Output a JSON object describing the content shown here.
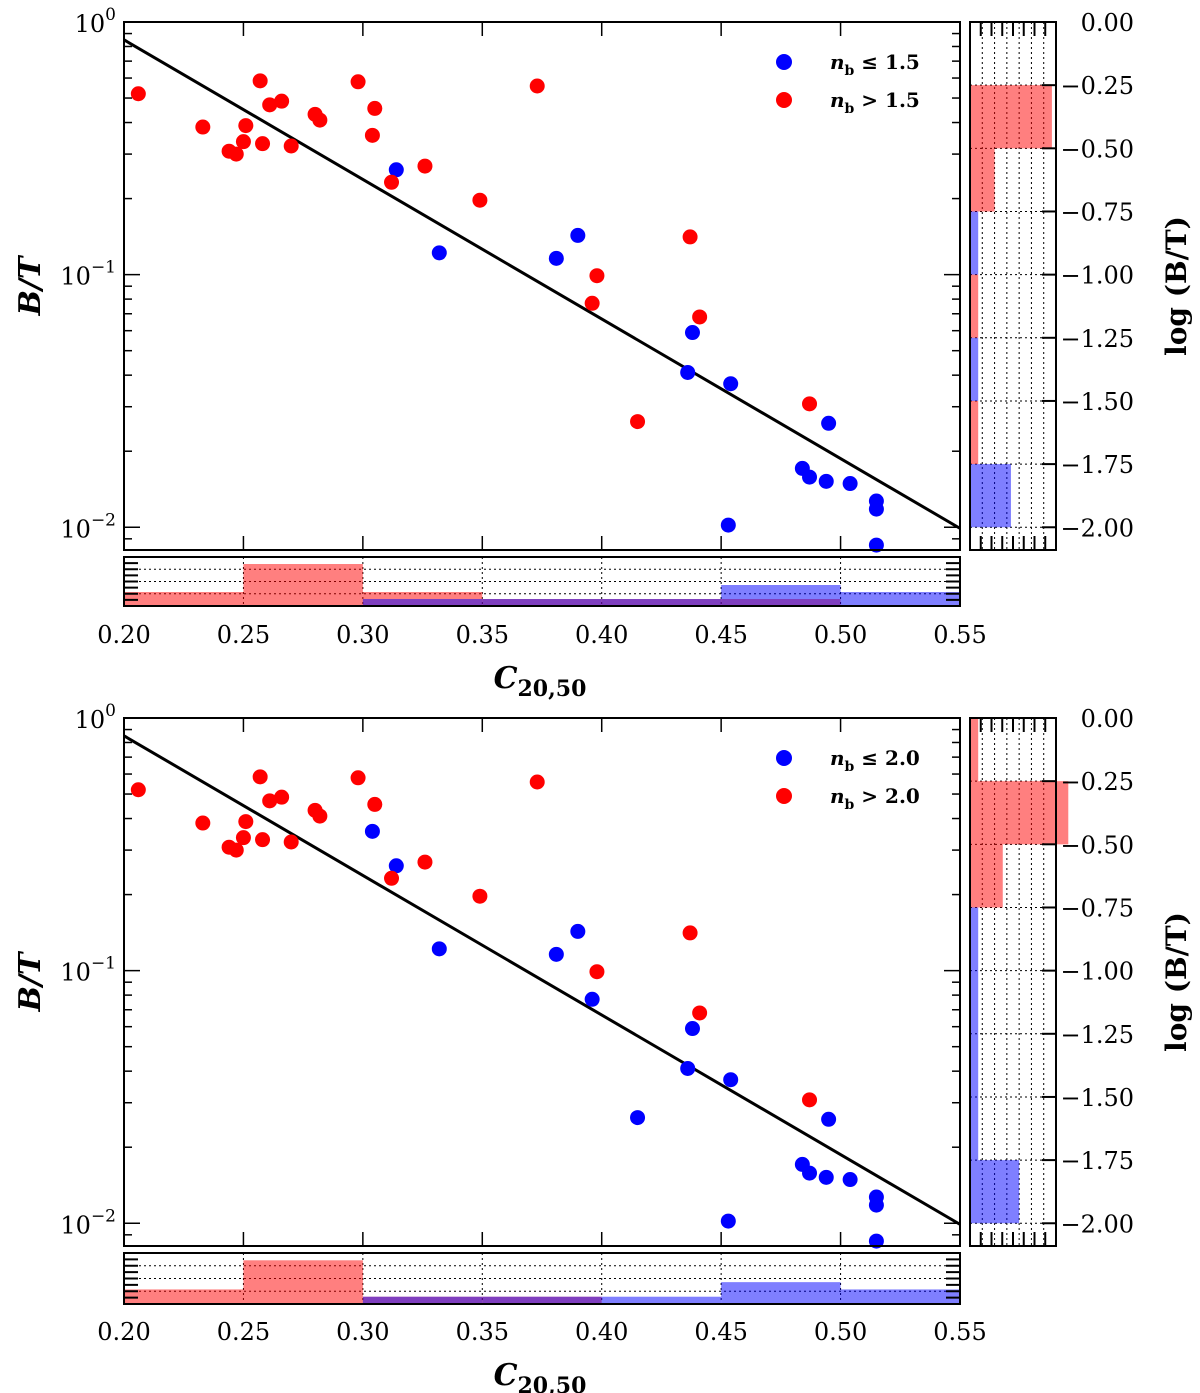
{
  "chart_data": [
    {
      "type": "scatter",
      "panel": "top",
      "xlabel": "C_{20,50}",
      "ylabel": "B/T",
      "xlim": [
        0.2,
        0.55
      ],
      "ylim_log10": [
        -2.09,
        0.0
      ],
      "x_ticks": [
        "0.20",
        "0.25",
        "0.30",
        "0.35",
        "0.40",
        "0.45",
        "0.50",
        "0.55"
      ],
      "y_ticks": [
        {
          "base": "10",
          "exp": "0",
          "value": 1.0
        },
        {
          "base": "10",
          "exp": "−1",
          "value": 0.1
        },
        {
          "base": "10",
          "exp": "−2",
          "value": 0.01
        }
      ],
      "legend": {
        "position": "top-right",
        "entries": [
          {
            "label": "n_b ≤ 1.5",
            "prefix": "n",
            "sub": "b",
            "suffix": " ≤ 1.5",
            "color": "#0000ff"
          },
          {
            "label": "n_b > 1.5",
            "prefix": "n",
            "sub": "b",
            "suffix": " > 1.5",
            "color": "#ff0000"
          }
        ]
      },
      "fit_line": {
        "x": [
          0.2,
          0.55
        ],
        "y": [
          0.85,
          0.0099
        ]
      },
      "series": [
        {
          "name": "n_b ≤ 1.5",
          "color": "#0000ff",
          "points": [
            [
              0.314,
              0.26
            ],
            [
              0.332,
              0.122
            ],
            [
              0.381,
              0.116
            ],
            [
              0.39,
              0.143
            ],
            [
              0.436,
              0.041
            ],
            [
              0.438,
              0.059
            ],
            [
              0.453,
              0.0102
            ],
            [
              0.454,
              0.037
            ],
            [
              0.484,
              0.0171
            ],
            [
              0.487,
              0.0158
            ],
            [
              0.494,
              0.0152
            ],
            [
              0.495,
              0.0258
            ],
            [
              0.504,
              0.0149
            ],
            [
              0.515,
              0.0127
            ],
            [
              0.515,
              0.0118
            ],
            [
              0.515,
              0.0085
            ]
          ]
        },
        {
          "name": "n_b > 1.5",
          "color": "#ff0000",
          "points": [
            [
              0.206,
              0.52
            ],
            [
              0.233,
              0.384
            ],
            [
              0.244,
              0.308
            ],
            [
              0.247,
              0.3
            ],
            [
              0.25,
              0.336
            ],
            [
              0.251,
              0.389
            ],
            [
              0.257,
              0.585
            ],
            [
              0.258,
              0.33
            ],
            [
              0.261,
              0.47
            ],
            [
              0.266,
              0.486
            ],
            [
              0.27,
              0.323
            ],
            [
              0.28,
              0.431
            ],
            [
              0.282,
              0.409
            ],
            [
              0.298,
              0.58
            ],
            [
              0.304,
              0.356
            ],
            [
              0.305,
              0.455
            ],
            [
              0.312,
              0.232
            ],
            [
              0.326,
              0.269
            ],
            [
              0.349,
              0.197
            ],
            [
              0.373,
              0.558
            ],
            [
              0.396,
              0.077
            ],
            [
              0.398,
              0.099
            ],
            [
              0.415,
              0.0262
            ],
            [
              0.437,
              0.141
            ],
            [
              0.441,
              0.068
            ],
            [
              0.487,
              0.0308
            ]
          ]
        }
      ],
      "right_histogram": {
        "ylabel": "log (B/T)",
        "ticks": [
          "0.00",
          "−0.25",
          "−0.50",
          "−0.75",
          "−1.00",
          "−1.25",
          "−1.50",
          "−1.75",
          "−2.00"
        ],
        "bins_log": [
          0.0,
          -0.25,
          -0.5,
          -0.75,
          -1.0,
          -1.25,
          -1.5,
          -1.75,
          -2.0
        ],
        "red_counts": [
          0,
          10,
          3,
          0,
          1,
          0,
          1,
          0
        ],
        "blue_counts": [
          0,
          0,
          0,
          1,
          0,
          1,
          0,
          5
        ]
      },
      "bottom_histogram": {
        "bins_x": [
          0.2,
          0.25,
          0.3,
          0.35,
          0.4,
          0.45,
          0.5,
          0.55
        ],
        "red_counts": [
          2,
          6,
          2,
          1,
          1,
          1,
          0
        ],
        "blue_counts": [
          0,
          0,
          1,
          1,
          1,
          3,
          2
        ]
      }
    },
    {
      "type": "scatter",
      "panel": "bottom",
      "xlabel": "C_{20,50}",
      "ylabel": "B/T",
      "xlim": [
        0.2,
        0.55
      ],
      "ylim_log10": [
        -2.09,
        0.0
      ],
      "x_ticks": [
        "0.20",
        "0.25",
        "0.30",
        "0.35",
        "0.40",
        "0.45",
        "0.50",
        "0.55"
      ],
      "y_ticks": [
        {
          "base": "10",
          "exp": "0",
          "value": 1.0
        },
        {
          "base": "10",
          "exp": "−1",
          "value": 0.1
        },
        {
          "base": "10",
          "exp": "−2",
          "value": 0.01
        }
      ],
      "legend": {
        "position": "top-right",
        "entries": [
          {
            "label": "n_b ≤ 2.0",
            "prefix": "n",
            "sub": "b",
            "suffix": " ≤ 2.0",
            "color": "#0000ff"
          },
          {
            "label": "n_b > 2.0",
            "prefix": "n",
            "sub": "b",
            "suffix": " > 2.0",
            "color": "#ff0000"
          }
        ]
      },
      "fit_line": {
        "x": [
          0.2,
          0.55
        ],
        "y": [
          0.85,
          0.0099
        ]
      },
      "series": [
        {
          "name": "n_b ≤ 2.0",
          "color": "#0000ff",
          "points": [
            [
              0.304,
              0.356
            ],
            [
              0.314,
              0.26
            ],
            [
              0.332,
              0.122
            ],
            [
              0.381,
              0.116
            ],
            [
              0.39,
              0.143
            ],
            [
              0.396,
              0.077
            ],
            [
              0.415,
              0.0262
            ],
            [
              0.436,
              0.041
            ],
            [
              0.438,
              0.059
            ],
            [
              0.453,
              0.0102
            ],
            [
              0.454,
              0.037
            ],
            [
              0.484,
              0.0171
            ],
            [
              0.487,
              0.0158
            ],
            [
              0.494,
              0.0152
            ],
            [
              0.495,
              0.0258
            ],
            [
              0.504,
              0.0149
            ],
            [
              0.515,
              0.0127
            ],
            [
              0.515,
              0.0118
            ],
            [
              0.515,
              0.0085
            ]
          ]
        },
        {
          "name": "n_b > 2.0",
          "color": "#ff0000",
          "points": [
            [
              0.206,
              0.52
            ],
            [
              0.233,
              0.384
            ],
            [
              0.244,
              0.308
            ],
            [
              0.247,
              0.3
            ],
            [
              0.25,
              0.336
            ],
            [
              0.251,
              0.389
            ],
            [
              0.257,
              0.585
            ],
            [
              0.258,
              0.33
            ],
            [
              0.261,
              0.47
            ],
            [
              0.266,
              0.486
            ],
            [
              0.27,
              0.323
            ],
            [
              0.28,
              0.431
            ],
            [
              0.282,
              0.409
            ],
            [
              0.298,
              0.58
            ],
            [
              0.305,
              0.455
            ],
            [
              0.312,
              0.232
            ],
            [
              0.326,
              0.269
            ],
            [
              0.349,
              0.197
            ],
            [
              0.373,
              0.558
            ],
            [
              0.398,
              0.099
            ],
            [
              0.437,
              0.141
            ],
            [
              0.441,
              0.068
            ],
            [
              0.487,
              0.0308
            ]
          ]
        }
      ],
      "right_histogram": {
        "ylabel": "log (B/T)",
        "ticks": [
          "0.00",
          "−0.25",
          "−0.50",
          "−0.75",
          "−1.00",
          "−1.25",
          "−1.50",
          "−1.75",
          "−2.00"
        ],
        "bins_log": [
          0.0,
          -0.25,
          -0.5,
          -0.75,
          -1.0,
          -1.25,
          -1.5,
          -1.75,
          -2.0
        ],
        "red_counts": [
          1,
          12,
          4,
          0,
          0,
          0,
          0,
          0
        ],
        "blue_counts": [
          0,
          0,
          0,
          1,
          1,
          1,
          1,
          6
        ]
      },
      "bottom_histogram": {
        "bins_x": [
          0.2,
          0.25,
          0.3,
          0.35,
          0.4,
          0.45,
          0.5,
          0.55
        ],
        "red_counts": [
          2,
          6,
          1,
          1,
          0,
          0,
          0
        ],
        "blue_counts": [
          0,
          0,
          1,
          1,
          1,
          3,
          2
        ]
      }
    }
  ]
}
